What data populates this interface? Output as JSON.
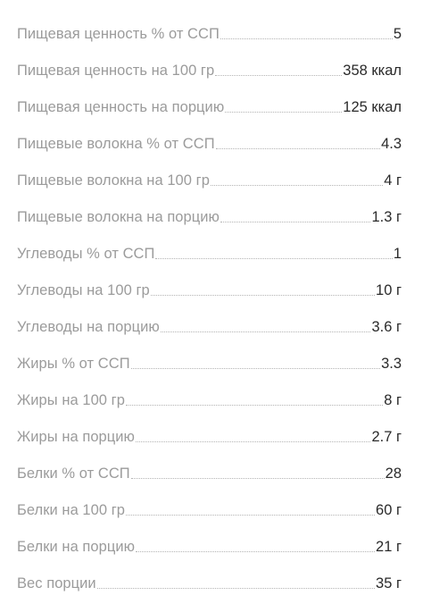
{
  "nutrition": {
    "rows": [
      {
        "label": "Пищевая ценность % от ССП",
        "value": "5"
      },
      {
        "label": "Пищевая ценность на 100 гр",
        "value": "358 ккал"
      },
      {
        "label": "Пищевая ценность на порцию",
        "value": "125 ккал"
      },
      {
        "label": "Пищевые волокна % от ССП",
        "value": "4.3"
      },
      {
        "label": "Пищевые волокна на 100 гр",
        "value": "4 г"
      },
      {
        "label": "Пищевые волокна на порцию",
        "value": "1.3 г"
      },
      {
        "label": "Углеводы % от ССП",
        "value": "1"
      },
      {
        "label": "Углеводы на 100 гр",
        "value": "10 г"
      },
      {
        "label": "Углеводы на порцию",
        "value": "3.6 г"
      },
      {
        "label": "Жиры % от ССП",
        "value": "3.3"
      },
      {
        "label": "Жиры на 100 гр",
        "value": "8 г"
      },
      {
        "label": "Жиры на порцию",
        "value": "2.7 г"
      },
      {
        "label": "Белки % от ССП",
        "value": "28"
      },
      {
        "label": "Белки на 100 гр",
        "value": "60 г"
      },
      {
        "label": "Белки на порцию",
        "value": "21 г"
      },
      {
        "label": "Вес порции",
        "value": "35 г"
      }
    ]
  }
}
